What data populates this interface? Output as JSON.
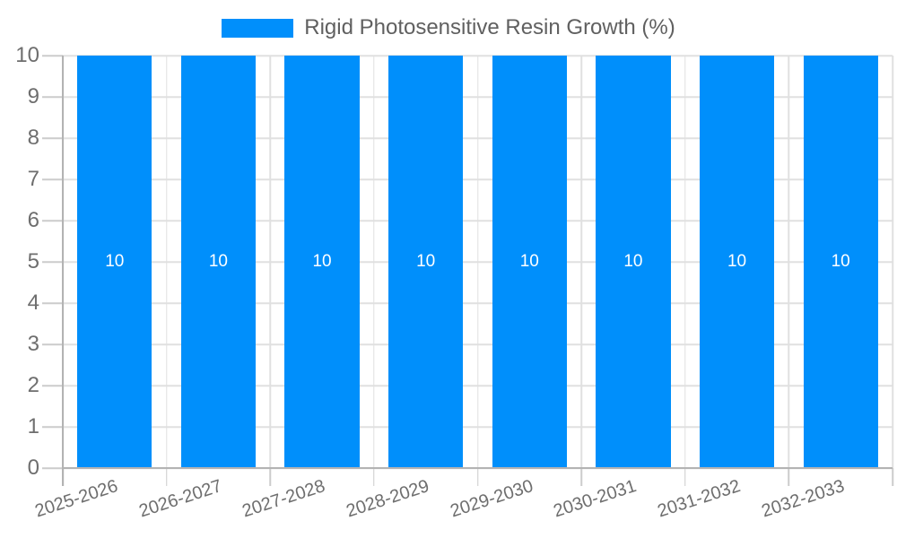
{
  "legend": {
    "label": "Rigid Photosensitive Resin Growth (%)"
  },
  "colors": {
    "bar": "#008FFB",
    "grid": "#e0e0e0",
    "axis": "#b3b3b3",
    "tick": "#cccccc",
    "axis_label": "#6e6e6e",
    "legend_label": "#606060",
    "data_label": "#ffffff",
    "background": "#ffffff"
  },
  "chart_data": {
    "type": "bar",
    "title": "Rigid Photosensitive Resin Growth (%)",
    "categories": [
      "2025-2026",
      "2026-2027",
      "2027-2028",
      "2028-2029",
      "2029-2030",
      "2030-2031",
      "2031-2032",
      "2032-2033"
    ],
    "series": [
      {
        "name": "Rigid Photosensitive Resin Growth (%)",
        "values": [
          10,
          10,
          10,
          10,
          10,
          10,
          10,
          10
        ]
      }
    ],
    "data_labels_shown": true,
    "xlabel": "",
    "ylabel": "",
    "ylim": [
      0,
      10
    ],
    "y_ticks": [
      0,
      1,
      2,
      3,
      4,
      5,
      6,
      7,
      8,
      9,
      10
    ],
    "grid": true,
    "legend_position": "top",
    "x_label_rotation": -18
  }
}
